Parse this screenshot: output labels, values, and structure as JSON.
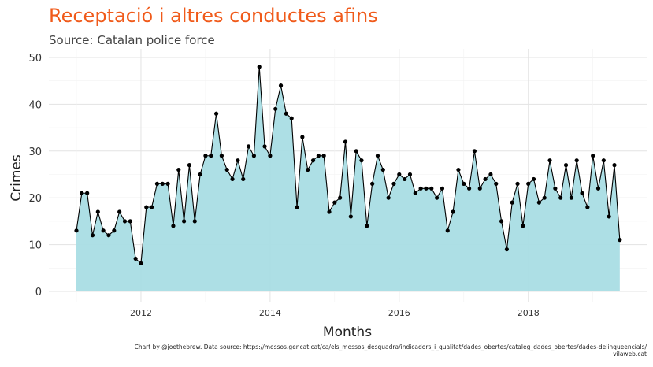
{
  "chart_data": {
    "type": "area",
    "title": "Receptació i altres conductes afins",
    "subtitle": "Source: Catalan police force",
    "xlabel": "Months",
    "ylabel": "Crimes",
    "ylim": [
      0,
      50
    ],
    "yticks": [
      0,
      10,
      20,
      30,
      40,
      50
    ],
    "xticks": [
      "2012",
      "2014",
      "2016",
      "2018"
    ],
    "grid": true,
    "colors": {
      "fill": "#a9dde4",
      "line": "#000000",
      "points": "#000000",
      "title": "#f05a1a"
    },
    "x_start": "2011-01",
    "x_end": "2019-06",
    "values": [
      13,
      21,
      21,
      12,
      17,
      13,
      12,
      13,
      17,
      15,
      15,
      7,
      6,
      18,
      18,
      23,
      23,
      23,
      14,
      26,
      15,
      27,
      15,
      25,
      29,
      29,
      38,
      29,
      26,
      24,
      28,
      24,
      31,
      29,
      48,
      31,
      29,
      39,
      44,
      38,
      37,
      18,
      33,
      26,
      28,
      29,
      29,
      17,
      19,
      20,
      32,
      16,
      30,
      28,
      14,
      23,
      29,
      26,
      20,
      23,
      25,
      24,
      25,
      21,
      22,
      22,
      22,
      20,
      22,
      13,
      17,
      26,
      23,
      22,
      30,
      22,
      24,
      25,
      23,
      15,
      9,
      19,
      23,
      14,
      23,
      24,
      19,
      20,
      28,
      22,
      20,
      27,
      20,
      28,
      21,
      18,
      29,
      22,
      28,
      16,
      27,
      11
    ]
  },
  "caption": {
    "line1": "Chart by @joethebrew. Data source: https://mossos.gencat.cat/ca/els_mossos_desquadra/indicadors_i_qualitat/dades_obertes/cataleg_dades_obertes/dades-delinqueencials/",
    "line2": "vilaweb.cat"
  }
}
